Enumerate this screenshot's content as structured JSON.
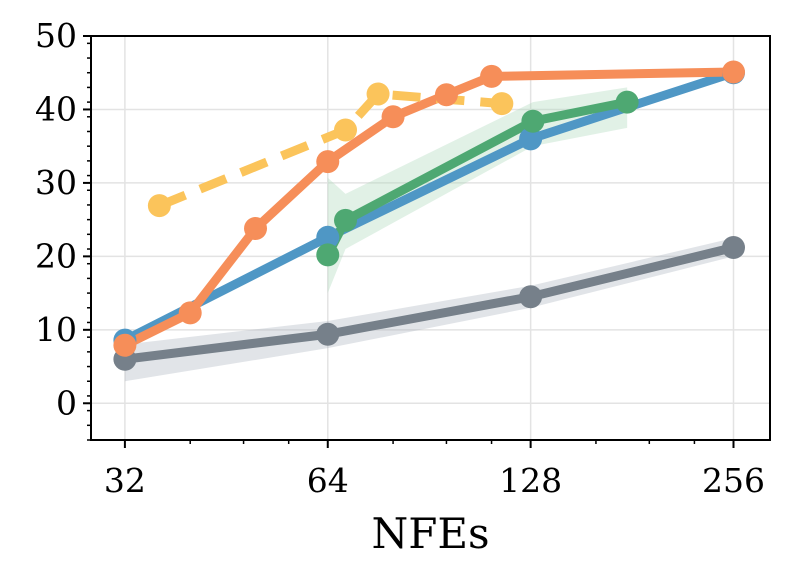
{
  "chart_data": {
    "type": "line",
    "title": "",
    "xlabel": "NFEs",
    "ylabel": "",
    "xscale": "log2",
    "xlim": [
      28.5,
      290
    ],
    "ylim": [
      -5,
      50
    ],
    "grid": true,
    "xticks": [
      32,
      64,
      128,
      256
    ],
    "xtick_labels": [
      "32",
      "64",
      "128",
      "256"
    ],
    "yticks": [
      0,
      10,
      20,
      30,
      40,
      50
    ],
    "ytick_labels": [
      "0",
      "10",
      "20",
      "30",
      "40",
      "50"
    ],
    "series": [
      {
        "name": "gray",
        "color": "#76808a",
        "dash": false,
        "points": [
          [
            32,
            6.0
          ],
          [
            64,
            9.4
          ],
          [
            128,
            14.5
          ],
          [
            256,
            21.2
          ]
        ],
        "band": {
          "color": "#aab3bc",
          "upper": [
            8.0,
            11.2,
            16.0,
            22.5
          ],
          "lower": [
            3.0,
            7.5,
            13.0,
            20.0
          ]
        }
      },
      {
        "name": "blue",
        "color": "#4f97c5",
        "dash": false,
        "points": [
          [
            32,
            8.6
          ],
          [
            64,
            22.6
          ],
          [
            128,
            36.0
          ],
          [
            256,
            45.0
          ]
        ]
      },
      {
        "name": "green",
        "color": "#4ea872",
        "dash": false,
        "points": [
          [
            64,
            20.2
          ],
          [
            68,
            24.9
          ],
          [
            129,
            38.4
          ],
          [
            178,
            41.0
          ]
        ],
        "band": {
          "color": "#a8d8b8",
          "upper": [
            30.7,
            28.5,
            41.0,
            43.0
          ],
          "lower": [
            15.0,
            21.0,
            35.0,
            37.5
          ]
        }
      },
      {
        "name": "orange",
        "color": "#f68e59",
        "dash": false,
        "points": [
          [
            32,
            7.9
          ],
          [
            40,
            12.3
          ],
          [
            50,
            23.8
          ],
          [
            64,
            32.9
          ],
          [
            80,
            39.0
          ],
          [
            96,
            42.0
          ],
          [
            112,
            44.5
          ],
          [
            256,
            45.1
          ]
        ]
      },
      {
        "name": "yellow-dashed",
        "color": "#fbc45b",
        "dash": true,
        "points": [
          [
            36,
            26.9
          ],
          [
            68,
            37.2
          ],
          [
            76,
            42.1
          ],
          [
            116,
            40.8
          ]
        ]
      }
    ]
  }
}
